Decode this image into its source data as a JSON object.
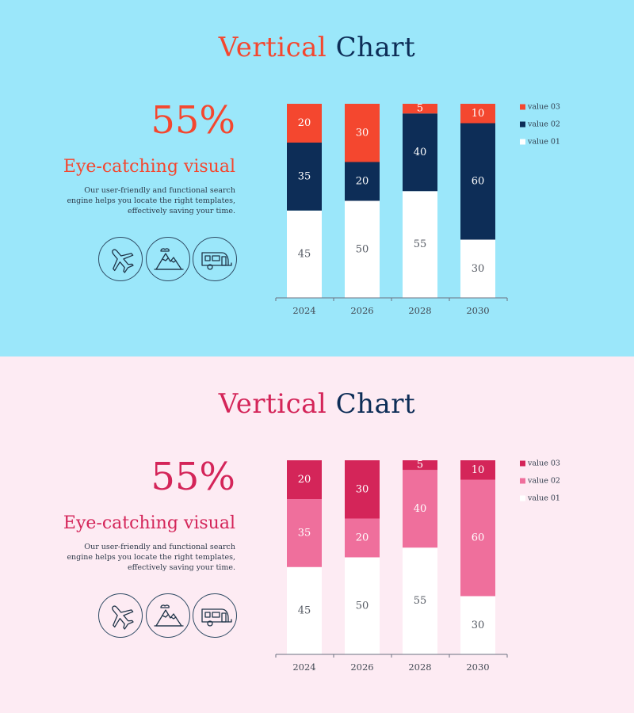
{
  "panels": [
    {
      "title_word1": "Vertical",
      "title_word2": "Chart",
      "percent": "55%",
      "subhead": "Eye-catching visual",
      "description": "Our user-friendly and functional search engine helps you locate the right templates, effectively saving your time.",
      "icons": [
        "airplane-icon",
        "mountains-icon",
        "camper-icon"
      ],
      "colors": {
        "background": "#9be7fa",
        "accent": "#f4472f",
        "navy": "#0d2d57",
        "value_03": "#f4472f",
        "value_02": "#0d2d57",
        "value_01": "#ffffff",
        "label_03": "#ffffff",
        "label_02": "#ffffff",
        "label_01": "#555a63"
      }
    },
    {
      "title_word1": "Vertical",
      "title_word2": "Chart",
      "percent": "55%",
      "subhead": "Eye-catching visual",
      "description": "Our user-friendly and functional search engine helps you locate the right templates, effectively saving your time.",
      "icons": [
        "airplane-icon",
        "mountains-icon",
        "camper-icon"
      ],
      "colors": {
        "background": "#fdebf3",
        "accent": "#d42559",
        "navy": "#0d2d57",
        "value_03": "#d42559",
        "value_02": "#ef6f9c",
        "value_01": "#ffffff",
        "label_03": "#ffffff",
        "label_02": "#ffffff",
        "label_01": "#555a63"
      }
    }
  ],
  "chart_data": [
    {
      "type": "bar",
      "stacked": true,
      "categories": [
        "2024",
        "2026",
        "2028",
        "2030"
      ],
      "series": [
        {
          "name": "value 01",
          "values": [
            45,
            50,
            55,
            30
          ]
        },
        {
          "name": "value 02",
          "values": [
            35,
            20,
            40,
            60
          ]
        },
        {
          "name": "value 03",
          "values": [
            20,
            30,
            5,
            10
          ]
        }
      ],
      "legend_order": [
        "value 03",
        "value 02",
        "value 01"
      ],
      "legend_position": "right",
      "ylim": [
        0,
        100
      ],
      "grid": false
    },
    {
      "type": "bar",
      "stacked": true,
      "categories": [
        "2024",
        "2026",
        "2028",
        "2030"
      ],
      "series": [
        {
          "name": "value 01",
          "values": [
            45,
            50,
            55,
            30
          ]
        },
        {
          "name": "value 02",
          "values": [
            35,
            20,
            40,
            60
          ]
        },
        {
          "name": "value 03",
          "values": [
            20,
            30,
            5,
            10
          ]
        }
      ],
      "legend_order": [
        "value 03",
        "value 02",
        "value 01"
      ],
      "legend_position": "right",
      "ylim": [
        0,
        100
      ],
      "grid": false
    }
  ]
}
